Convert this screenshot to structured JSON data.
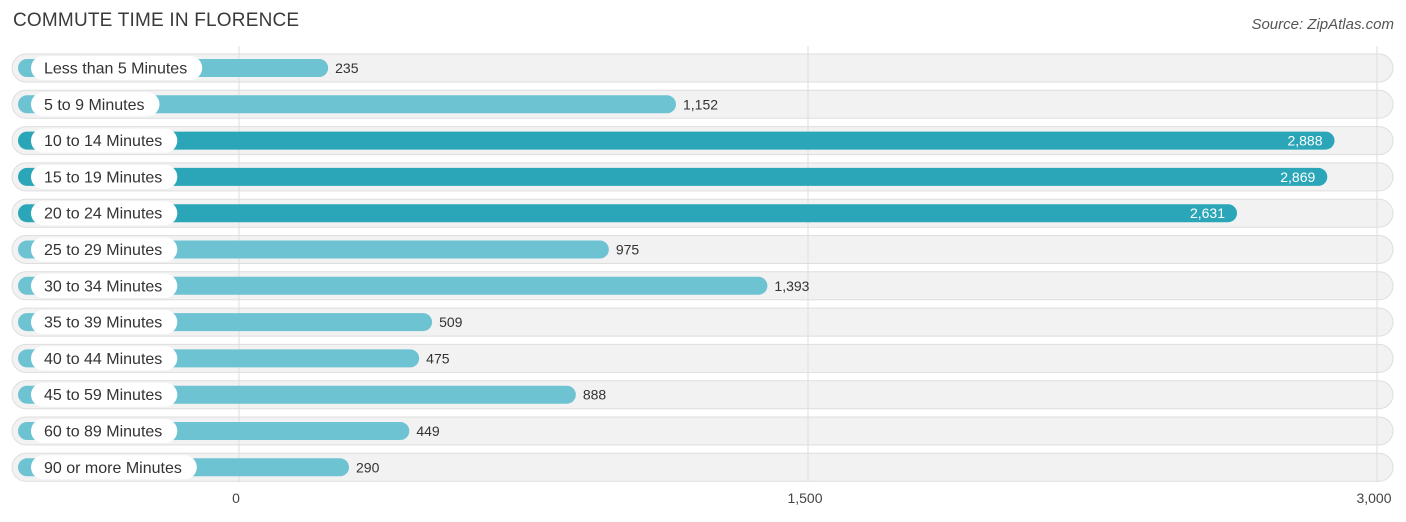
{
  "title": "COMMUTE TIME IN FLORENCE",
  "source": "Source: ZipAtlas.com",
  "colors": {
    "bar_light": "#6ec3d2",
    "bar_dark": "#2aa6b8",
    "row_bg": "#f2f2f2",
    "row_border": "#dedede",
    "grid": "#dddddd"
  },
  "chart_data": {
    "type": "bar",
    "orientation": "horizontal",
    "categories": [
      "Less than 5 Minutes",
      "5 to 9 Minutes",
      "10 to 14 Minutes",
      "15 to 19 Minutes",
      "20 to 24 Minutes",
      "25 to 29 Minutes",
      "30 to 34 Minutes",
      "35 to 39 Minutes",
      "40 to 44 Minutes",
      "45 to 59 Minutes",
      "60 to 89 Minutes",
      "90 or more Minutes"
    ],
    "values": [
      235,
      1152,
      2888,
      2869,
      2631,
      975,
      1393,
      509,
      475,
      888,
      449,
      290
    ],
    "value_labels": [
      "235",
      "1,152",
      "2,888",
      "2,869",
      "2,631",
      "975",
      "1,393",
      "509",
      "475",
      "888",
      "449",
      "290"
    ],
    "x_ticks": [
      0,
      1500,
      3000
    ],
    "x_tick_labels": [
      "0",
      "1,500",
      "3,000"
    ],
    "xlim": [
      0,
      3000
    ],
    "grid": true,
    "legend": "none"
  }
}
